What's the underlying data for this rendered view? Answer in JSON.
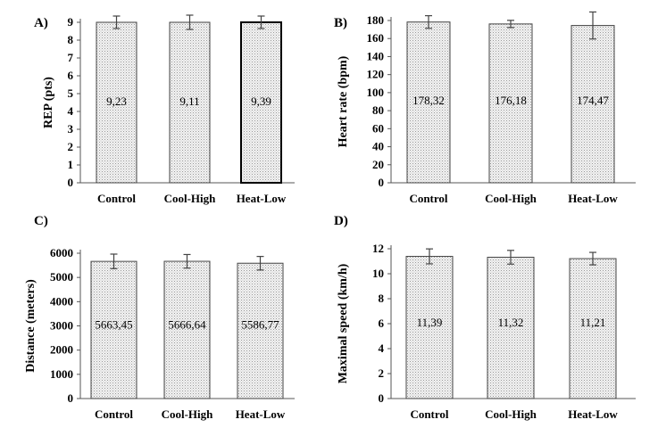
{
  "chart_data": [
    {
      "id": "A",
      "type": "bar",
      "panel_label": "A)",
      "ylabel": "REP (pts)",
      "categories": [
        "Control",
        "Cool-High",
        "Heat-Low"
      ],
      "values": [
        9.23,
        9.11,
        9.39
      ],
      "value_labels": [
        "9,23",
        "9,11",
        "9,39"
      ],
      "errors": [
        0.35,
        0.4,
        0.35
      ],
      "ylim": [
        0,
        9
      ],
      "yticks": [
        0,
        1,
        2,
        3,
        4,
        5,
        6,
        7,
        8,
        9
      ],
      "ytick_labels": [
        "0",
        "1",
        "2",
        "3",
        "4",
        "5",
        "6",
        "7",
        "8",
        "9"
      ],
      "grid": false
    },
    {
      "id": "B",
      "type": "bar",
      "panel_label": "B)",
      "ylabel": "Heart rate (bpm)",
      "categories": [
        "Control",
        "Cool-High",
        "Heat-Low"
      ],
      "values": [
        178.32,
        176.18,
        174.47
      ],
      "value_labels": [
        "178,32",
        "176,18",
        "174,47"
      ],
      "errors": [
        7,
        4,
        15
      ],
      "ylim": [
        0,
        180
      ],
      "yticks": [
        0,
        20,
        40,
        60,
        80,
        100,
        120,
        140,
        160,
        180
      ],
      "ytick_labels": [
        "0",
        "20",
        "40",
        "60",
        "80",
        "100",
        "120",
        "140",
        "160",
        "180"
      ],
      "grid": false
    },
    {
      "id": "C",
      "type": "bar",
      "panel_label": "C)",
      "ylabel": "Distance (meters)",
      "categories": [
        "Control",
        "Cool-High",
        "Heat-Low"
      ],
      "values": [
        5663.45,
        5666.64,
        5586.77
      ],
      "value_labels": [
        "5663,45",
        "5666,64",
        "5586,77"
      ],
      "errors": [
        300,
        280,
        280
      ],
      "ylim": [
        0,
        6000
      ],
      "yticks": [
        0,
        1000,
        2000,
        3000,
        4000,
        5000,
        6000
      ],
      "ytick_labels": [
        "0",
        "1000",
        "2000",
        "3000",
        "4000",
        "5000",
        "6000"
      ],
      "grid": false
    },
    {
      "id": "D",
      "type": "bar",
      "panel_label": "D)",
      "ylabel": "Maximal speed (km/h)",
      "categories": [
        "Control",
        "Cool-High",
        "Heat-Low"
      ],
      "values": [
        11.39,
        11.32,
        11.21
      ],
      "value_labels": [
        "11,39",
        "11,32",
        "11,21"
      ],
      "errors": [
        0.6,
        0.55,
        0.5
      ],
      "ylim": [
        0,
        12
      ],
      "yticks": [
        0,
        2,
        4,
        6,
        8,
        10,
        12
      ],
      "ytick_labels": [
        "0",
        "2",
        "4",
        "6",
        "8",
        "10",
        "12"
      ],
      "grid": false
    }
  ]
}
